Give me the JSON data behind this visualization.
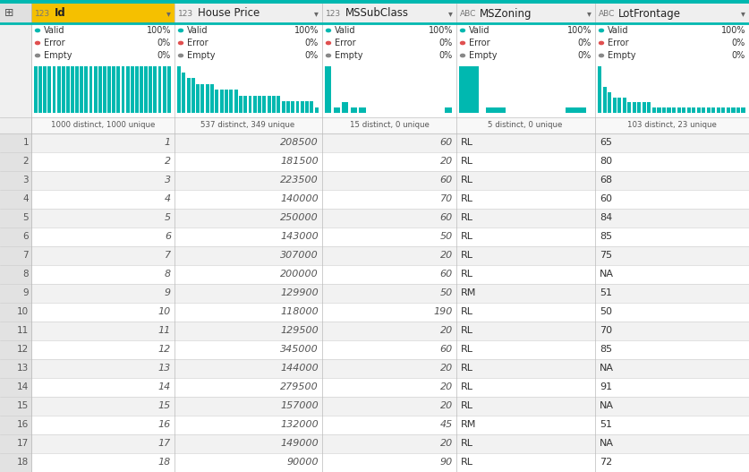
{
  "teal_bar": "#00b8b0",
  "teal_header_line": "#00b8b0",
  "valid_color": "#00b8b0",
  "error_color": "#e05050",
  "empty_color": "#888888",
  "columns": [
    "Id",
    "House Price",
    "MSSubClass",
    "MSZoning",
    "LotFrontage"
  ],
  "col_types_num": [
    true,
    true,
    true,
    false,
    false
  ],
  "distinct_labels": [
    "1000 distinct, 1000 unique",
    "537 distinct, 349 unique",
    "15 distinct, 0 unique",
    "5 distinct, 0 unique",
    "103 distinct, 23 unique"
  ],
  "rows": [
    [
      1,
      208500,
      60,
      "RL",
      65
    ],
    [
      2,
      181500,
      20,
      "RL",
      80
    ],
    [
      3,
      223500,
      60,
      "RL",
      68
    ],
    [
      4,
      140000,
      70,
      "RL",
      60
    ],
    [
      5,
      250000,
      60,
      "RL",
      84
    ],
    [
      6,
      143000,
      50,
      "RL",
      85
    ],
    [
      7,
      307000,
      20,
      "RL",
      75
    ],
    [
      8,
      200000,
      60,
      "RL",
      "NA"
    ],
    [
      9,
      129900,
      50,
      "RM",
      51
    ],
    [
      10,
      118000,
      190,
      "RL",
      50
    ],
    [
      11,
      129500,
      20,
      "RL",
      70
    ],
    [
      12,
      345000,
      60,
      "RL",
      85
    ],
    [
      13,
      144000,
      20,
      "RL",
      "NA"
    ],
    [
      14,
      279500,
      20,
      "RL",
      91
    ],
    [
      15,
      157000,
      20,
      "RL",
      "NA"
    ],
    [
      16,
      132000,
      45,
      "RM",
      51
    ],
    [
      17,
      149000,
      20,
      "RL",
      "NA"
    ],
    [
      18,
      90000,
      90,
      "RL",
      72
    ]
  ],
  "col_alignments": [
    "right",
    "right",
    "right",
    "left",
    "left"
  ],
  "hist_data": {
    "Id": [
      1,
      1,
      1,
      1,
      1,
      1,
      1,
      1,
      1,
      1,
      1,
      1,
      1,
      1,
      1,
      1,
      1,
      1,
      1,
      1,
      1,
      1,
      1,
      1,
      1,
      1,
      1,
      1,
      1,
      1
    ],
    "House Price": [
      8,
      7,
      6,
      6,
      5,
      5,
      5,
      5,
      4,
      4,
      4,
      4,
      4,
      3,
      3,
      3,
      3,
      3,
      3,
      3,
      3,
      3,
      2,
      2,
      2,
      2,
      2,
      2,
      2,
      1
    ],
    "MSSubClass": [
      9,
      1,
      2,
      1,
      1,
      0,
      0,
      0,
      0,
      0,
      0,
      0,
      0,
      0,
      1
    ],
    "MSZoning": [
      9,
      1,
      0,
      0,
      1
    ],
    "LotFrontage": [
      9,
      5,
      4,
      3,
      3,
      3,
      2,
      2,
      2,
      2,
      2,
      1,
      1,
      1,
      1,
      1,
      1,
      1,
      1,
      1,
      1,
      1,
      1,
      1,
      1,
      1,
      1,
      1,
      1,
      1
    ]
  }
}
